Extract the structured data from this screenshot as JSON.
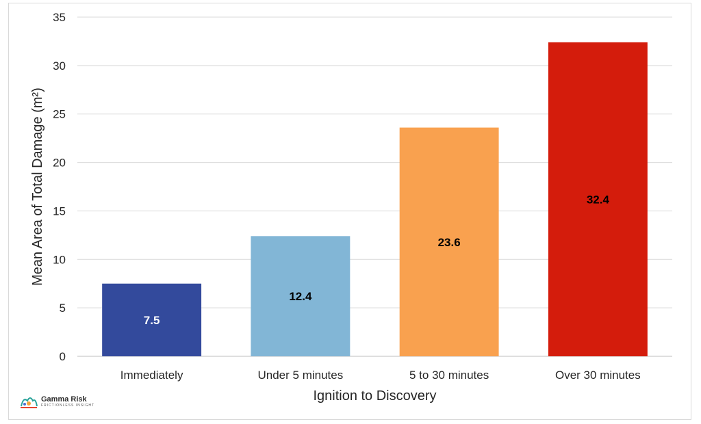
{
  "chart_data": {
    "type": "bar",
    "categories": [
      "Immediately",
      "Under 5 minutes",
      "5 to 30 minutes",
      "Over 30 minutes"
    ],
    "values": [
      7.5,
      12.4,
      23.6,
      32.4
    ],
    "data_labels": [
      "7.5",
      "12.4",
      "23.6",
      "32.4"
    ],
    "bar_colors": [
      "#334a9c",
      "#82b6d6",
      "#f9a14f",
      "#d41c0c"
    ],
    "label_colors": [
      "#ffffff",
      "#000000",
      "#000000",
      "#000000"
    ],
    "xlabel": "Ignition to Discovery",
    "ylabel": "Mean Area of Total Damage (m²)",
    "ylim": [
      0,
      35
    ],
    "yticks": [
      0,
      5,
      10,
      15,
      20,
      25,
      30,
      35
    ],
    "grid": true,
    "legend": "none"
  },
  "logo": {
    "name": "Gamma Risk",
    "tagline": "FRICTIONLESS INSIGHT"
  }
}
